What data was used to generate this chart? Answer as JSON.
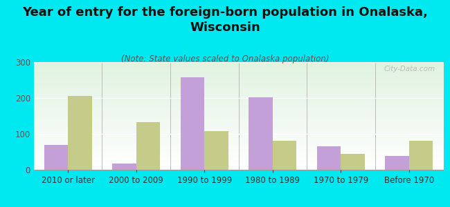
{
  "title": "Year of entry for the foreign-born population in Onalaska,\nWisconsin",
  "subtitle": "(Note: State values scaled to Onalaska population)",
  "categories": [
    "2010 or later",
    "2000 to 2009",
    "1990 to 1999",
    "1980 to 1989",
    "1970 to 1979",
    "Before 1970"
  ],
  "onalaska_values": [
    70,
    18,
    258,
    202,
    65,
    38
  ],
  "wisconsin_values": [
    205,
    133,
    107,
    80,
    45,
    80
  ],
  "onalaska_color": "#c4a0d8",
  "wisconsin_color": "#c5cc8a",
  "background_color": "#00e8f0",
  "ylim": [
    0,
    300
  ],
  "yticks": [
    0,
    100,
    200,
    300
  ],
  "title_fontsize": 13,
  "subtitle_fontsize": 8.5,
  "tick_fontsize": 8.5,
  "legend_fontsize": 9.5,
  "watermark": "City-Data.com",
  "bar_width": 0.35
}
